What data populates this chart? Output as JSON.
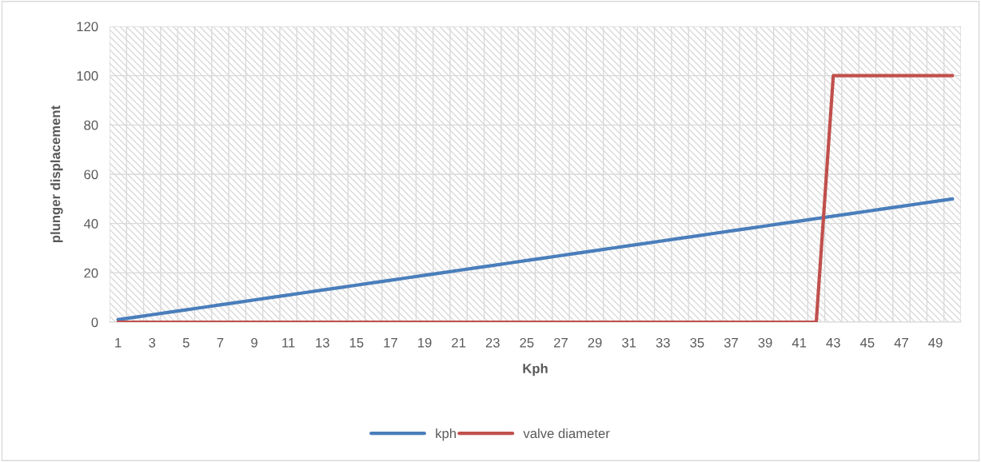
{
  "chart_data": {
    "type": "line",
    "xlabel": "Kph",
    "ylabel": "plunger displacement",
    "categories": [
      "1",
      null,
      "3",
      null,
      "5",
      null,
      "7",
      null,
      "9",
      null,
      "11",
      null,
      "13",
      null,
      "15",
      null,
      "17",
      null,
      "19",
      null,
      "21",
      null,
      "23",
      null,
      "25",
      null,
      "27",
      null,
      "29",
      null,
      "31",
      null,
      "33",
      null,
      "35",
      null,
      "37",
      null,
      "39",
      null,
      "41",
      null,
      "43",
      null,
      "45",
      null,
      "47",
      null,
      "49",
      null
    ],
    "series": [
      {
        "name": "kph",
        "color": "#4a7ebb",
        "values": [
          1,
          2,
          3,
          4,
          5,
          6,
          7,
          8,
          9,
          10,
          11,
          12,
          13,
          14,
          15,
          16,
          17,
          18,
          19,
          20,
          21,
          22,
          23,
          24,
          25,
          26,
          27,
          28,
          29,
          30,
          31,
          32,
          33,
          34,
          35,
          36,
          37,
          38,
          39,
          40,
          41,
          42,
          43,
          44,
          45,
          46,
          47,
          48,
          49,
          50
        ]
      },
      {
        "name": "valve diameter",
        "color": "#c0504d",
        "values": [
          0,
          0,
          0,
          0,
          0,
          0,
          0,
          0,
          0,
          0,
          0,
          0,
          0,
          0,
          0,
          0,
          0,
          0,
          0,
          0,
          0,
          0,
          0,
          0,
          0,
          0,
          0,
          0,
          0,
          0,
          0,
          0,
          0,
          0,
          0,
          0,
          0,
          0,
          0,
          0,
          0,
          0,
          100,
          100,
          100,
          100,
          100,
          100,
          100,
          100
        ]
      }
    ],
    "ylim": [
      0,
      120
    ],
    "yticks": [
      0,
      20,
      40,
      60,
      80,
      100,
      120
    ],
    "grid": true,
    "legend": "bottom",
    "marker": "none",
    "line_style": "solid"
  }
}
